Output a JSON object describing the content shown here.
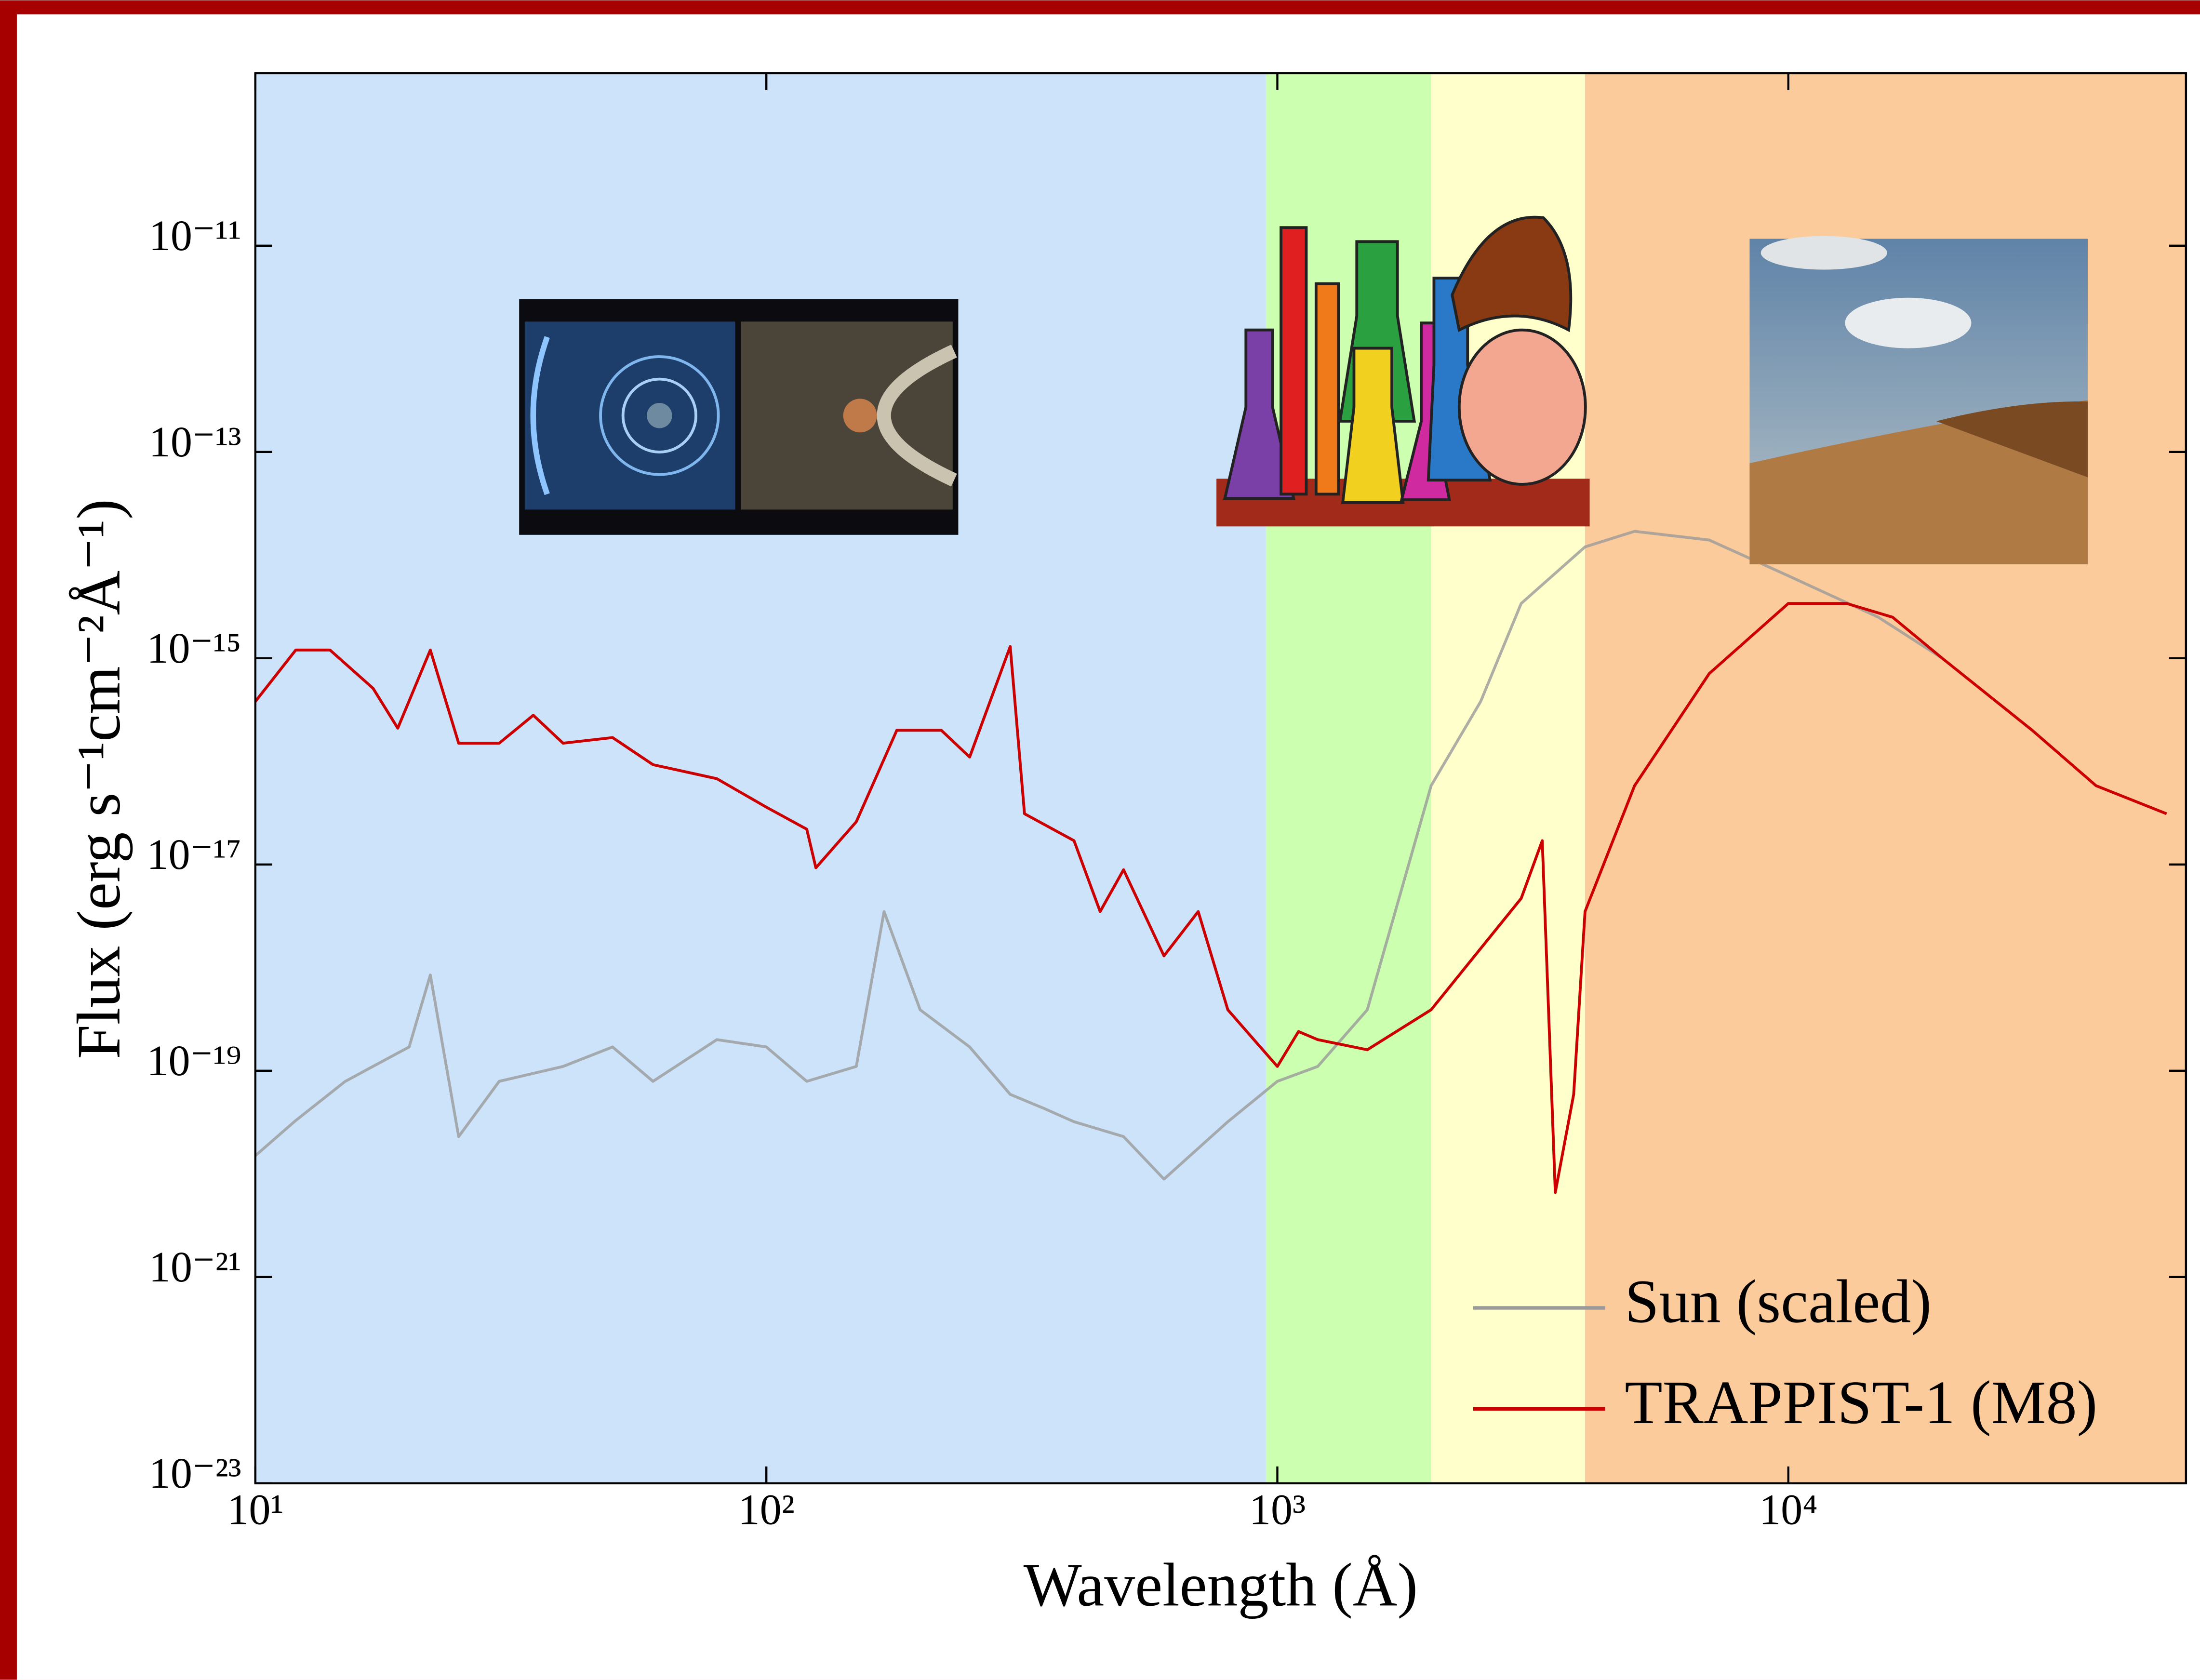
{
  "chart_data": {
    "type": "line",
    "xlabel": "Wavelength (Å)",
    "ylabel": "Flux (erg s⁻¹cm⁻²Å⁻¹)",
    "xscale": "log",
    "yscale": "log",
    "xlim": [
      10,
      60000
    ],
    "ylim": [
      1e-23,
      4.7e-10
    ],
    "xticks": [
      {
        "value": 10,
        "label": "10¹"
      },
      {
        "value": 100,
        "label": "10²"
      },
      {
        "value": 1000,
        "label": "10³"
      },
      {
        "value": 10000,
        "label": "10⁴"
      }
    ],
    "yticks": [
      {
        "value": 1e-23,
        "label": "10⁻²³"
      },
      {
        "value": 1e-21,
        "label": "10⁻²¹"
      },
      {
        "value": 1e-19,
        "label": "10⁻¹⁹"
      },
      {
        "value": 1e-17,
        "label": "10⁻¹⁷"
      },
      {
        "value": 1e-15,
        "label": "10⁻¹⁵"
      },
      {
        "value": 1e-13,
        "label": "10⁻¹³"
      },
      {
        "value": 1e-11,
        "label": "10⁻¹¹"
      }
    ],
    "regions": [
      {
        "from": 10,
        "to": 950,
        "color": "#cce3fa"
      },
      {
        "from": 950,
        "to": 2000,
        "color": "#ccffb0"
      },
      {
        "from": 2000,
        "to": 4000,
        "color": "#ffffcc"
      },
      {
        "from": 4000,
        "to": 60000,
        "color": "#fccb9b"
      }
    ],
    "legend": "lower right",
    "series": [
      {
        "name": "Sun (scaled)",
        "color": "#9a9a9a",
        "x": [
          10,
          12,
          15,
          20,
          22,
          25,
          30,
          40,
          50,
          60,
          80,
          100,
          120,
          150,
          170,
          200,
          250,
          300,
          350,
          400,
          500,
          600,
          800,
          1000,
          1200,
          1500,
          2000,
          2500,
          3000,
          4000,
          5000,
          7000,
          10000,
          15000,
          20000
        ],
        "values": [
          1.5e-20,
          3.3e-20,
          7.9e-20,
          1.7e-19,
          8.5e-19,
          2.3e-20,
          7.9e-20,
          1.1e-19,
          1.7e-19,
          7.9e-20,
          2e-19,
          1.7e-19,
          7.9e-20,
          1.1e-19,
          3.5e-18,
          3.9e-19,
          1.7e-19,
          5.9e-20,
          4.3e-20,
          3.2e-20,
          2.3e-20,
          8.9e-21,
          3.2e-20,
          7.9e-20,
          1.1e-19,
          3.9e-19,
          5.8e-17,
          3.8e-16,
          3.4e-15,
          1.2e-14,
          1.7e-14,
          1.4e-14,
          6.3e-15,
          2.5e-15,
          1e-15
        ]
      },
      {
        "name": "TRAPPIST-1 (M8)",
        "color": "#cc0000",
        "x": [
          10,
          12,
          14,
          17,
          19,
          22,
          25,
          30,
          35,
          40,
          50,
          60,
          80,
          100,
          120,
          125,
          150,
          180,
          220,
          250,
          300,
          320,
          400,
          450,
          500,
          600,
          700,
          800,
          900,
          1000,
          1100,
          1200,
          1500,
          2000,
          3000,
          3300,
          3500,
          3800,
          4000,
          5000,
          7000,
          10000,
          13000,
          16000,
          20000,
          30000,
          40000,
          55000
        ],
        "values": [
          3.8e-16,
          1.2e-15,
          1.2e-15,
          5.1e-16,
          2.1e-16,
          1.2e-15,
          1.5e-16,
          1.5e-16,
          2.8e-16,
          1.5e-16,
          1.7e-16,
          9.3e-17,
          6.8e-17,
          3.6e-17,
          2.2e-17,
          9.3e-18,
          2.6e-17,
          2e-16,
          2e-16,
          1.1e-16,
          1.3e-15,
          3.1e-17,
          1.7e-17,
          3.5e-18,
          8.9e-18,
          1.3e-18,
          3.5e-18,
          3.9e-19,
          2e-19,
          1.1e-19,
          2.4e-19,
          2e-19,
          1.6e-19,
          3.9e-19,
          4.7e-18,
          1.7e-17,
          6.6e-21,
          5.9e-20,
          3.5e-18,
          5.8e-17,
          7.1e-16,
          3.4e-15,
          3.4e-15,
          2.5e-15,
          1e-15,
          2e-16,
          5.8e-17,
          3.1e-17
        ]
      }
    ]
  }
}
